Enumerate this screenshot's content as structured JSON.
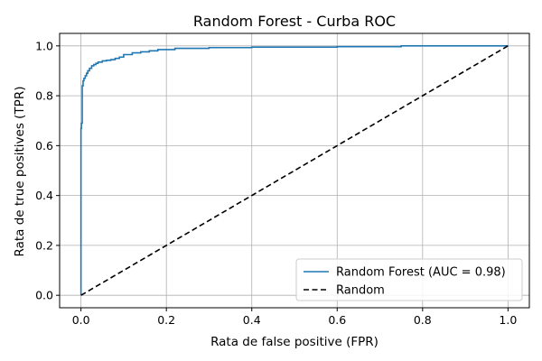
{
  "chart_data": {
    "type": "line",
    "title": "Random Forest - Curba ROC",
    "xlabel": "Rata de false positive (FPR)",
    "ylabel": "Rata de true positives (TPR)",
    "xlim": [
      -0.05,
      1.05
    ],
    "ylim": [
      -0.05,
      1.05
    ],
    "xticks": [
      0.0,
      0.2,
      0.4,
      0.6,
      0.8,
      1.0
    ],
    "yticks": [
      0.0,
      0.2,
      0.4,
      0.6,
      0.8,
      1.0
    ],
    "xtick_labels": [
      "0.0",
      "0.2",
      "0.4",
      "0.6",
      "0.8",
      "1.0"
    ],
    "ytick_labels": [
      "0.0",
      "0.2",
      "0.4",
      "0.6",
      "0.8",
      "1.0"
    ],
    "grid": true,
    "legend_position": "lower-right",
    "series": [
      {
        "name": "Random Forest (AUC = 0.98)",
        "color": "#1f77b4",
        "style": "solid",
        "x": [
          0.0,
          0.0,
          0.001,
          0.001,
          0.003,
          0.003,
          0.005,
          0.005,
          0.007,
          0.007,
          0.01,
          0.01,
          0.013,
          0.013,
          0.016,
          0.016,
          0.02,
          0.02,
          0.025,
          0.025,
          0.03,
          0.03,
          0.035,
          0.035,
          0.04,
          0.04,
          0.05,
          0.05,
          0.06,
          0.06,
          0.07,
          0.07,
          0.08,
          0.08,
          0.09,
          0.09,
          0.1,
          0.1,
          0.12,
          0.12,
          0.14,
          0.14,
          0.16,
          0.16,
          0.18,
          0.18,
          0.22,
          0.22,
          0.3,
          0.3,
          0.4,
          0.4,
          0.6,
          0.6,
          0.75,
          0.75,
          1.0
        ],
        "y": [
          0.0,
          0.67,
          0.67,
          0.69,
          0.69,
          0.84,
          0.84,
          0.86,
          0.86,
          0.87,
          0.87,
          0.88,
          0.88,
          0.89,
          0.89,
          0.9,
          0.9,
          0.91,
          0.91,
          0.92,
          0.92,
          0.925,
          0.925,
          0.93,
          0.93,
          0.935,
          0.935,
          0.94,
          0.94,
          0.942,
          0.942,
          0.945,
          0.945,
          0.95,
          0.95,
          0.955,
          0.955,
          0.965,
          0.965,
          0.972,
          0.972,
          0.976,
          0.976,
          0.98,
          0.98,
          0.985,
          0.985,
          0.99,
          0.99,
          0.993,
          0.993,
          0.995,
          0.995,
          0.997,
          0.997,
          1.0,
          1.0
        ]
      },
      {
        "name": "Random",
        "color": "#000000",
        "style": "dashed",
        "x": [
          0.0,
          1.0
        ],
        "y": [
          0.0,
          1.0
        ]
      }
    ]
  }
}
